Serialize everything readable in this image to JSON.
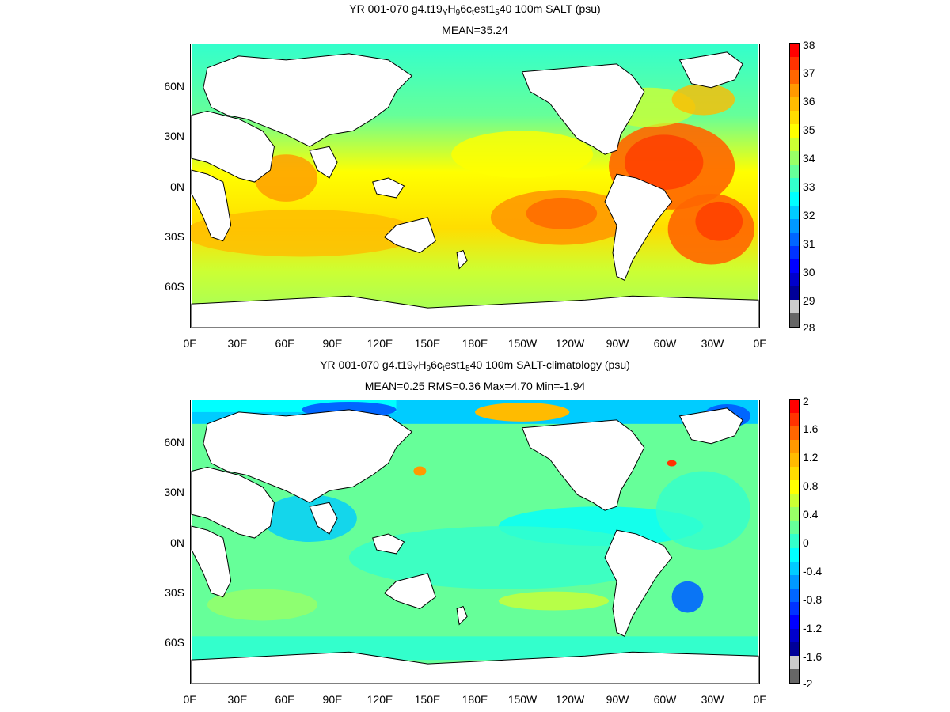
{
  "panels": [
    {
      "id": "salt",
      "title": {
        "prefix": "YR 001-070 g4.t19",
        "sub1": "Y",
        "mid1": "H",
        "sub2": "9",
        "mid2": "6c",
        "sub3": "t",
        "mid3": "est1",
        "sub4": "5",
        "suffix": "40 100m SALT (psu)"
      },
      "stats": "MEAN=35.24",
      "colorbar": {
        "labels": [
          "38",
          "37",
          "36",
          "35",
          "34",
          "33",
          "32",
          "31",
          "30",
          "29",
          "28"
        ],
        "colors": [
          "#ff0000",
          "#ff3300",
          "#ff6600",
          "#ff9900",
          "#ffbb00",
          "#ffdd00",
          "#ffff00",
          "#ccff33",
          "#99ff66",
          "#66ff99",
          "#33ffcc",
          "#00ffff",
          "#00ccff",
          "#0099ff",
          "#0066ff",
          "#0033ff",
          "#0000ff",
          "#0000cc",
          "#000099",
          "#cccccc",
          "#666666"
        ]
      }
    },
    {
      "id": "diff",
      "title": {
        "prefix": "YR 001-070 g4.t19",
        "sub1": "Y",
        "mid1": "H",
        "sub2": "9",
        "mid2": "6c",
        "sub3": "t",
        "mid3": "est1",
        "sub4": "5",
        "suffix": "40 100m SALT-climatology (psu)"
      },
      "stats": "MEAN=0.25   RMS=0.36   Max=4.70   Min=-1.94",
      "colorbar": {
        "labels": [
          "2",
          "1.6",
          "1.2",
          "0.8",
          "0.4",
          "0",
          "-0.4",
          "-0.8",
          "-1.2",
          "-1.6",
          "-2"
        ],
        "colors": [
          "#ff0000",
          "#ff3300",
          "#ff6600",
          "#ff9900",
          "#ffbb00",
          "#ffdd00",
          "#ffff00",
          "#ccff33",
          "#99ff66",
          "#66ff99",
          "#33ffcc",
          "#00ffff",
          "#00ccff",
          "#0099ff",
          "#0066ff",
          "#0033ff",
          "#0000ff",
          "#0000cc",
          "#000099",
          "#cccccc",
          "#666666"
        ]
      }
    }
  ],
  "axes": {
    "lat_ticks": [
      "60N",
      "30N",
      "0N",
      "30S",
      "60S"
    ],
    "lon_ticks": [
      "0E",
      "30E",
      "60E",
      "90E",
      "120E",
      "150E",
      "180E",
      "150W",
      "120W",
      "90W",
      "60W",
      "30W",
      "0E"
    ]
  },
  "colors": {
    "land": "#ffffff",
    "coast": "#000000"
  }
}
